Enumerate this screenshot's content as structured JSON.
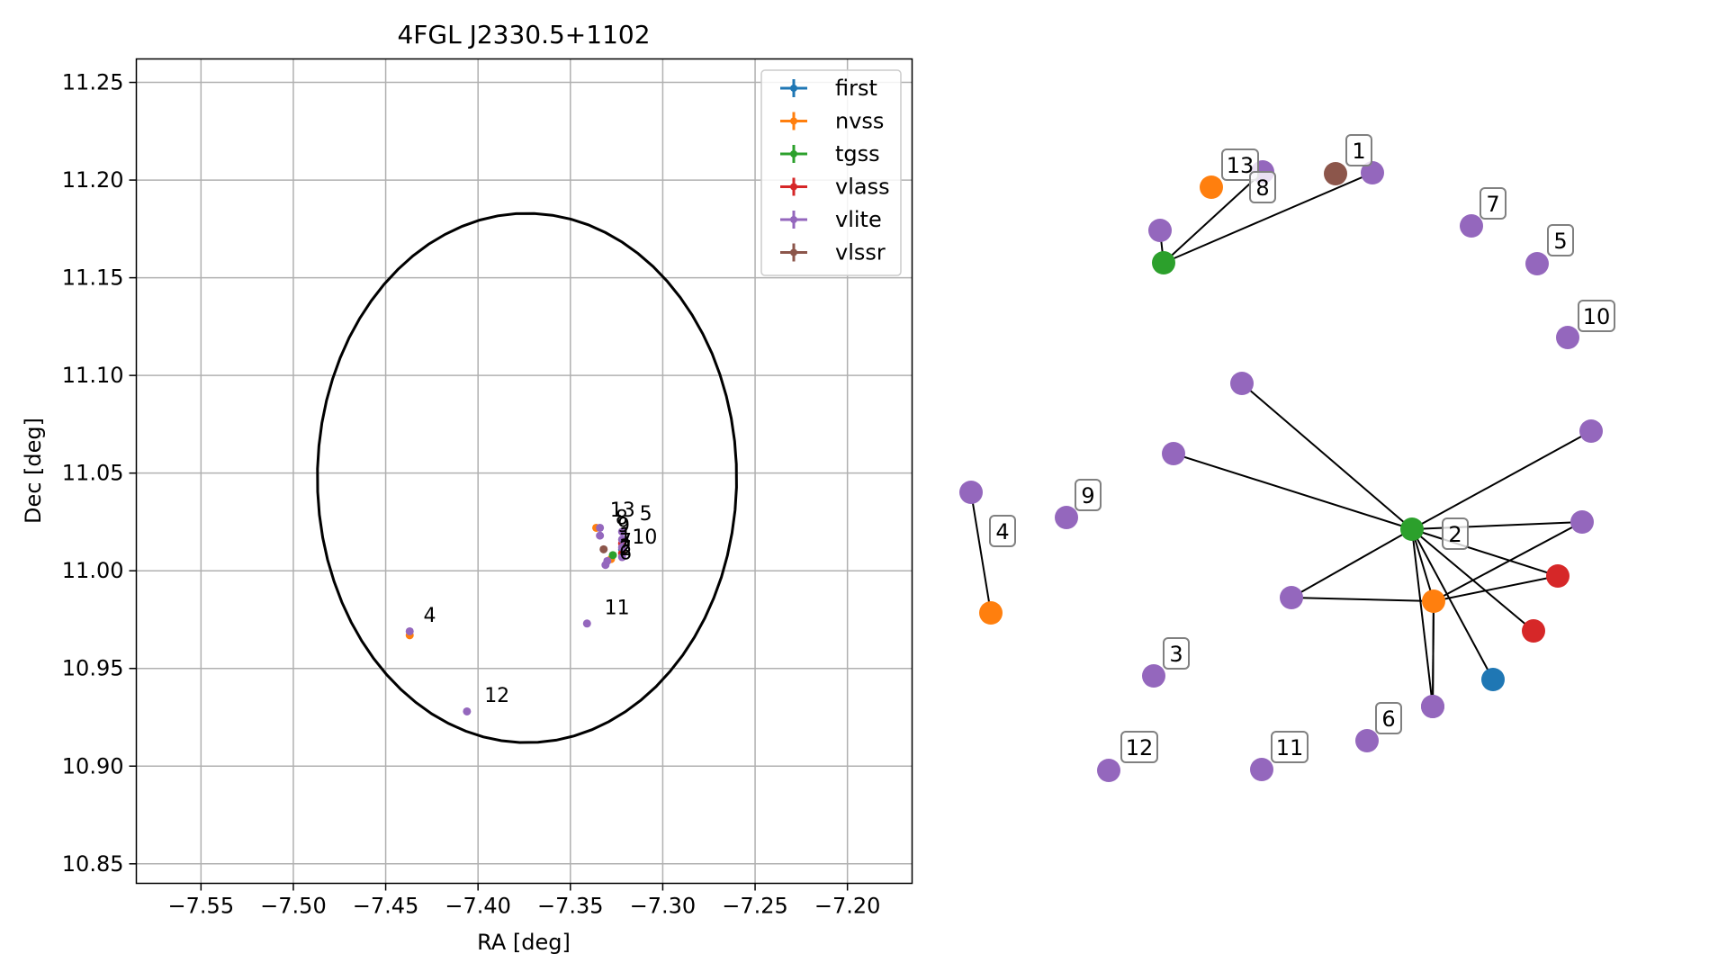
{
  "chart_data": [
    {
      "type": "scatter",
      "title": "4FGL J2330.5+1102",
      "xlabel": "RA [deg]",
      "ylabel": "Dec [deg]",
      "xlim": [
        -7.585,
        -7.165
      ],
      "ylim": [
        10.84,
        11.262
      ],
      "xticks": [
        -7.55,
        -7.5,
        -7.45,
        -7.4,
        -7.35,
        -7.3,
        -7.25,
        -7.2
      ],
      "xtick_labels": [
        "−7.55",
        "−7.50",
        "−7.45",
        "−7.40",
        "−7.35",
        "−7.30",
        "−7.25",
        "−7.20"
      ],
      "yticks": [
        10.85,
        10.9,
        10.95,
        11.0,
        11.05,
        11.1,
        11.15,
        11.2,
        11.25
      ],
      "ytick_labels": [
        "10.85",
        "10.90",
        "10.95",
        "11.00",
        "11.05",
        "11.10",
        "11.15",
        "11.20",
        "11.25"
      ],
      "grid": true,
      "legend_position": "top-right",
      "series": [
        {
          "name": "first",
          "color": "#1f77b4",
          "points": [
            [
              -7.322,
              11.011
            ]
          ]
        },
        {
          "name": "nvss",
          "color": "#ff7f0e",
          "points": [
            [
              -7.336,
              11.022
            ],
            [
              -7.437,
              10.967
            ],
            [
              -7.328,
              11.006
            ]
          ]
        },
        {
          "name": "tgss",
          "color": "#2ca02c",
          "points": [
            [
              -7.327,
              11.008
            ]
          ]
        },
        {
          "name": "vlass",
          "color": "#d62728",
          "points": [
            [
              -7.322,
              11.014
            ],
            [
              -7.322,
              11.009
            ]
          ]
        },
        {
          "name": "vlite",
          "color": "#9467bd",
          "points": [
            [
              -7.334,
              11.022
            ],
            [
              -7.334,
              11.018
            ],
            [
              -7.322,
              11.02
            ],
            [
              -7.322,
              11.016
            ],
            [
              -7.322,
              11.012
            ],
            [
              -7.33,
              11.005
            ],
            [
              -7.331,
              11.003
            ],
            [
              -7.437,
              10.969
            ],
            [
              -7.341,
              10.973
            ],
            [
              -7.406,
              10.928
            ],
            [
              -7.322,
              11.007
            ]
          ]
        },
        {
          "name": "vlssr",
          "color": "#8c564b",
          "points": [
            [
              -7.332,
              11.011
            ]
          ]
        }
      ],
      "labels": [
        {
          "text": "13",
          "x": -7.332,
          "y": 11.026
        },
        {
          "text": "8",
          "x": -7.329,
          "y": 11.022
        },
        {
          "text": "9",
          "x": -7.328,
          "y": 11.018
        },
        {
          "text": "5",
          "x": -7.316,
          "y": 11.024
        },
        {
          "text": "1",
          "x": -7.327,
          "y": 11.013
        },
        {
          "text": "7",
          "x": -7.327,
          "y": 11.01
        },
        {
          "text": "10",
          "x": -7.32,
          "y": 11.012
        },
        {
          "text": "3",
          "x": -7.327,
          "y": 11.007
        },
        {
          "text": "2",
          "x": -7.327,
          "y": 11.006
        },
        {
          "text": "6",
          "x": -7.327,
          "y": 11.004
        },
        {
          "text": "4",
          "x": -7.433,
          "y": 10.972
        },
        {
          "text": "11",
          "x": -7.335,
          "y": 10.976
        },
        {
          "text": "12",
          "x": -7.4,
          "y": 10.931
        }
      ],
      "ellipse": {
        "center": [
          -7.3735,
          11.0475
        ],
        "ra_half_width": 0.1135,
        "dec_half_height": 0.1355,
        "angle_deg": -12
      }
    },
    {
      "type": "network",
      "nodes": [
        {
          "id": "g1",
          "color": "#2ca02c",
          "label": "2"
        },
        {
          "id": "g2",
          "color": "#2ca02c",
          "label": ""
        },
        {
          "id": "o1",
          "color": "#ff7f0e",
          "label": ""
        },
        {
          "id": "o2",
          "color": "#ff7f0e",
          "label": "4"
        },
        {
          "id": "o3",
          "color": "#ff7f0e",
          "label": "13"
        },
        {
          "id": "b1",
          "color": "#1f77b4",
          "label": ""
        },
        {
          "id": "r1",
          "color": "#d62728",
          "label": ""
        },
        {
          "id": "r2",
          "color": "#d62728",
          "label": ""
        },
        {
          "id": "br1",
          "color": "#8c564b",
          "label": ""
        },
        {
          "id": "p1",
          "color": "#9467bd",
          "label": ""
        },
        {
          "id": "p2",
          "color": "#9467bd",
          "label": ""
        },
        {
          "id": "p3",
          "color": "#9467bd",
          "label": ""
        },
        {
          "id": "p4",
          "color": "#9467bd",
          "label": ""
        },
        {
          "id": "p5",
          "color": "#9467bd",
          "label": ""
        },
        {
          "id": "p6",
          "color": "#9467bd",
          "label": ""
        },
        {
          "id": "p7",
          "color": "#9467bd",
          "label": ""
        },
        {
          "id": "p8",
          "color": "#9467bd",
          "label": "8"
        },
        {
          "id": "p9",
          "color": "#9467bd",
          "label": "1"
        },
        {
          "id": "p10",
          "color": "#9467bd",
          "label": ""
        },
        {
          "id": "p11",
          "color": "#9467bd",
          "label": "7"
        },
        {
          "id": "p12",
          "color": "#9467bd",
          "label": "5"
        },
        {
          "id": "p13",
          "color": "#9467bd",
          "label": "10"
        },
        {
          "id": "p14",
          "color": "#9467bd",
          "label": "9"
        },
        {
          "id": "p15",
          "color": "#9467bd",
          "label": ""
        },
        {
          "id": "p16",
          "color": "#9467bd",
          "label": "3"
        },
        {
          "id": "p17",
          "color": "#9467bd",
          "label": "12"
        },
        {
          "id": "p18",
          "color": "#9467bd",
          "label": "11"
        },
        {
          "id": "p19",
          "color": "#9467bd",
          "label": "6"
        }
      ],
      "edges": [
        [
          "g1",
          "p1"
        ],
        [
          "g1",
          "p2"
        ],
        [
          "g1",
          "p3"
        ],
        [
          "g1",
          "p4"
        ],
        [
          "g1",
          "p5"
        ],
        [
          "g1",
          "o1"
        ],
        [
          "g1",
          "r1"
        ],
        [
          "g1",
          "r2"
        ],
        [
          "g1",
          "b1"
        ],
        [
          "g1",
          "p7"
        ],
        [
          "o1",
          "p5"
        ],
        [
          "o1",
          "p4"
        ],
        [
          "o1",
          "r1"
        ],
        [
          "o1",
          "p6"
        ],
        [
          "o1",
          "p7"
        ],
        [
          "g2",
          "p8"
        ],
        [
          "g2",
          "p9"
        ],
        [
          "g2",
          "p10"
        ],
        [
          "o2",
          "p15"
        ]
      ]
    }
  ]
}
